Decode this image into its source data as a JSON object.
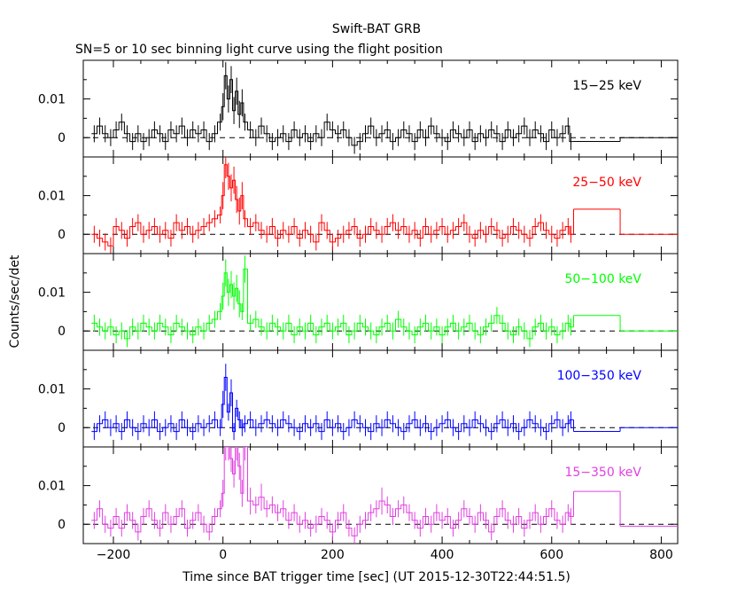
{
  "chart_data": {
    "type": "line",
    "title": "Swift-BAT GRB",
    "subtitle": "SN=5 or 10 sec binning light curve using the flight position",
    "xlabel": "Time since BAT trigger time [sec] (UT 2015-12-30T22:44:51.5)",
    "ylabel": "Counts/sec/det",
    "xlim": [
      -255,
      830
    ],
    "x_ticks": [
      -200,
      0,
      200,
      400,
      600,
      800
    ],
    "x_tick_labels": [
      "−200",
      "0",
      "200",
      "400",
      "600",
      "800"
    ],
    "baseline": 0,
    "panels": [
      {
        "name": "15−25 keV",
        "color": "#000000",
        "ylim": [
          -0.005,
          0.02
        ],
        "y_ticks": [
          0,
          0.01
        ],
        "y_tick_labels": [
          "0",
          "0.01"
        ],
        "x": [
          -235,
          -225,
          -215,
          -205,
          -195,
          -185,
          -175,
          -165,
          -155,
          -145,
          -135,
          -125,
          -115,
          -105,
          -95,
          -85,
          -75,
          -65,
          -55,
          -45,
          -35,
          -25,
          -15,
          -5,
          0,
          5,
          10,
          15,
          20,
          25,
          30,
          35,
          40,
          50,
          60,
          70,
          80,
          90,
          100,
          110,
          120,
          130,
          140,
          150,
          160,
          170,
          180,
          190,
          200,
          210,
          220,
          230,
          240,
          250,
          260,
          270,
          280,
          290,
          300,
          310,
          320,
          330,
          340,
          350,
          360,
          370,
          380,
          390,
          400,
          410,
          420,
          430,
          440,
          450,
          460,
          470,
          480,
          490,
          500,
          510,
          520,
          530,
          540,
          550,
          560,
          570,
          580,
          590,
          600,
          610,
          620,
          630,
          635
        ],
        "y": [
          0.001,
          0.003,
          0.001,
          0.0,
          0.002,
          0.004,
          0.001,
          -0.001,
          0.001,
          -0.001,
          0.0,
          0.002,
          0.001,
          -0.001,
          0.002,
          0.001,
          0.003,
          0.0,
          0.002,
          0.001,
          0.002,
          -0.001,
          0.001,
          0.004,
          0.008,
          0.016,
          0.01,
          0.015,
          0.007,
          0.012,
          0.006,
          0.009,
          0.004,
          0.002,
          0.0,
          0.003,
          0.001,
          -0.001,
          0.0,
          0.001,
          -0.001,
          0.002,
          0.0,
          0.001,
          -0.001,
          0.001,
          0.0,
          0.004,
          0.002,
          0.001,
          0.002,
          0.0,
          -0.002,
          -0.001,
          0.001,
          0.003,
          0.0,
          0.001,
          0.002,
          -0.001,
          0.0,
          0.002,
          0.001,
          -0.001,
          0.002,
          0.0,
          0.003,
          0.001,
          0.0,
          -0.001,
          0.002,
          0.001,
          0.0,
          0.002,
          -0.001,
          0.001,
          0.0,
          0.002,
          0.001,
          -0.001,
          0.002,
          0.0,
          0.001,
          0.003,
          0.0,
          0.002,
          0.001,
          -0.001,
          0.002,
          0.0,
          0.001,
          0.003,
          -0.001
        ],
        "long_bins": [
          {
            "start": 640,
            "end": 725,
            "value": -0.001
          },
          {
            "start": 725,
            "end": 830,
            "value": 0.0
          }
        ]
      },
      {
        "name": "25−50 keV",
        "color": "#ff0000",
        "ylim": [
          -0.005,
          0.02
        ],
        "y_ticks": [
          0,
          0.01
        ],
        "y_tick_labels": [
          "0",
          "0.01"
        ],
        "x": [
          -235,
          -225,
          -215,
          -205,
          -195,
          -185,
          -175,
          -165,
          -155,
          -145,
          -135,
          -125,
          -115,
          -105,
          -95,
          -85,
          -75,
          -65,
          -55,
          -45,
          -35,
          -25,
          -15,
          -5,
          0,
          5,
          10,
          15,
          20,
          25,
          30,
          35,
          40,
          50,
          60,
          70,
          80,
          90,
          100,
          110,
          120,
          130,
          140,
          150,
          160,
          170,
          180,
          190,
          200,
          210,
          220,
          230,
          240,
          250,
          260,
          270,
          280,
          290,
          300,
          310,
          320,
          330,
          340,
          350,
          360,
          370,
          380,
          390,
          400,
          410,
          420,
          430,
          440,
          450,
          460,
          470,
          480,
          490,
          500,
          510,
          520,
          530,
          540,
          550,
          560,
          570,
          580,
          590,
          600,
          610,
          620,
          630,
          635
        ],
        "y": [
          0.0,
          -0.001,
          -0.002,
          -0.003,
          0.002,
          0.001,
          -0.001,
          0.002,
          0.003,
          0.0,
          0.001,
          0.002,
          0.0,
          0.001,
          -0.001,
          0.003,
          0.001,
          0.002,
          0.0,
          0.001,
          0.002,
          0.003,
          0.004,
          0.005,
          0.01,
          0.018,
          0.015,
          0.012,
          0.014,
          0.009,
          0.006,
          0.01,
          0.004,
          0.002,
          0.003,
          0.001,
          0.0,
          0.002,
          -0.001,
          0.001,
          0.0,
          0.002,
          -0.001,
          0.001,
          0.0,
          -0.002,
          0.003,
          0.001,
          -0.002,
          -0.001,
          0.0,
          0.001,
          0.002,
          -0.001,
          0.0,
          0.002,
          0.001,
          0.0,
          0.002,
          0.003,
          0.001,
          0.002,
          0.0,
          0.001,
          -0.001,
          0.002,
          0.0,
          0.001,
          0.002,
          0.0,
          0.001,
          0.002,
          0.003,
          0.0,
          -0.001,
          0.001,
          0.0,
          0.002,
          0.001,
          -0.001,
          0.0,
          0.002,
          0.001,
          0.0,
          -0.001,
          0.002,
          0.003,
          0.001,
          0.0,
          -0.001,
          0.001,
          0.002,
          0.0
        ],
        "long_bins": [
          {
            "start": 640,
            "end": 725,
            "value": 0.0065
          },
          {
            "start": 725,
            "end": 830,
            "value": 0.0
          }
        ]
      },
      {
        "name": "50−100 keV",
        "color": "#00ff00",
        "ylim": [
          -0.005,
          0.02
        ],
        "y_ticks": [
          0,
          0.01
        ],
        "y_tick_labels": [
          "0",
          "0.01"
        ],
        "x": [
          -235,
          -225,
          -215,
          -205,
          -195,
          -185,
          -175,
          -165,
          -155,
          -145,
          -135,
          -125,
          -115,
          -105,
          -95,
          -85,
          -75,
          -65,
          -55,
          -45,
          -35,
          -25,
          -15,
          -5,
          0,
          5,
          10,
          15,
          20,
          25,
          30,
          35,
          40,
          50,
          60,
          70,
          80,
          90,
          100,
          110,
          120,
          130,
          140,
          150,
          160,
          170,
          180,
          190,
          200,
          210,
          220,
          230,
          240,
          250,
          260,
          270,
          280,
          290,
          300,
          310,
          320,
          330,
          340,
          350,
          360,
          370,
          380,
          390,
          400,
          410,
          420,
          430,
          440,
          450,
          460,
          470,
          480,
          490,
          500,
          510,
          520,
          530,
          540,
          550,
          560,
          570,
          580,
          590,
          600,
          610,
          620,
          630,
          635
        ],
        "y": [
          0.002,
          0.001,
          0.0,
          0.001,
          -0.001,
          0.0,
          -0.002,
          0.001,
          0.0,
          0.002,
          0.001,
          0.0,
          0.002,
          0.001,
          -0.001,
          0.002,
          0.001,
          0.0,
          -0.001,
          0.001,
          0.0,
          0.002,
          0.003,
          0.005,
          0.009,
          0.015,
          0.01,
          0.012,
          0.009,
          0.011,
          0.007,
          0.005,
          0.016,
          0.002,
          0.003,
          0.001,
          0.0,
          0.002,
          0.001,
          0.0,
          0.002,
          -0.001,
          0.001,
          0.0,
          0.002,
          -0.001,
          0.001,
          0.002,
          0.0,
          0.001,
          0.002,
          -0.001,
          0.0,
          0.002,
          0.001,
          0.0,
          -0.001,
          0.001,
          0.002,
          0.0,
          0.003,
          0.001,
          0.0,
          -0.001,
          0.001,
          0.002,
          0.0,
          0.001,
          -0.001,
          0.001,
          0.002,
          0.0,
          0.001,
          0.002,
          0.0,
          -0.001,
          0.001,
          0.002,
          0.004,
          0.002,
          0.0,
          -0.001,
          0.001,
          0.0,
          -0.002,
          0.001,
          0.002,
          0.0,
          0.001,
          -0.001,
          0.0,
          0.002,
          0.001
        ],
        "long_bins": [
          {
            "start": 640,
            "end": 725,
            "value": 0.004
          },
          {
            "start": 725,
            "end": 830,
            "value": 0.0
          }
        ]
      },
      {
        "name": "100−350 keV",
        "color": "#0000ff",
        "ylim": [
          -0.005,
          0.02
        ],
        "y_ticks": [
          0,
          0.01
        ],
        "y_tick_labels": [
          "0",
          "0.01"
        ],
        "x": [
          -235,
          -225,
          -215,
          -205,
          -195,
          -185,
          -175,
          -165,
          -155,
          -145,
          -135,
          -125,
          -115,
          -105,
          -95,
          -85,
          -75,
          -65,
          -55,
          -45,
          -35,
          -25,
          -15,
          -5,
          0,
          5,
          10,
          15,
          20,
          25,
          30,
          35,
          40,
          50,
          60,
          70,
          80,
          90,
          100,
          110,
          120,
          130,
          140,
          150,
          160,
          170,
          180,
          190,
          200,
          210,
          220,
          230,
          240,
          250,
          260,
          270,
          280,
          290,
          300,
          310,
          320,
          330,
          340,
          350,
          360,
          370,
          380,
          390,
          400,
          410,
          420,
          430,
          440,
          450,
          460,
          470,
          480,
          490,
          500,
          510,
          520,
          530,
          540,
          550,
          560,
          570,
          580,
          590,
          600,
          610,
          620,
          630,
          635
        ],
        "y": [
          -0.001,
          0.001,
          0.002,
          0.0,
          0.001,
          -0.001,
          0.002,
          0.0,
          -0.001,
          0.001,
          0.0,
          0.002,
          -0.001,
          0.0,
          0.001,
          -0.001,
          0.002,
          0.0,
          -0.001,
          0.001,
          0.0,
          0.001,
          0.002,
          0.0,
          0.006,
          0.013,
          0.004,
          0.009,
          -0.001,
          0.005,
          0.002,
          0.0,
          0.001,
          0.002,
          0.0,
          0.001,
          0.002,
          0.001,
          0.0,
          0.002,
          0.001,
          0.0,
          -0.001,
          0.001,
          0.0,
          0.001,
          -0.001,
          0.002,
          0.0,
          0.001,
          -0.001,
          0.0,
          0.002,
          0.001,
          0.0,
          -0.001,
          0.001,
          0.0,
          0.002,
          0.001,
          0.0,
          -0.001,
          0.001,
          0.002,
          0.0,
          0.001,
          -0.001,
          0.0,
          0.001,
          0.002,
          0.0,
          -0.001,
          0.001,
          0.0,
          0.002,
          0.001,
          0.0,
          -0.001,
          0.001,
          0.002,
          0.0,
          0.001,
          -0.001,
          0.0,
          0.002,
          0.001,
          0.0,
          -0.001,
          0.001,
          0.002,
          0.0,
          0.001,
          0.002
        ],
        "long_bins": [
          {
            "start": 640,
            "end": 725,
            "value": -0.001
          },
          {
            "start": 725,
            "end": 830,
            "value": 0.0
          }
        ]
      },
      {
        "name": "15−350 keV",
        "color": "#e040e0",
        "ylim": [
          -0.005,
          0.02
        ],
        "y_ticks": [
          0,
          0.01
        ],
        "y_tick_labels": [
          "0",
          "0.01"
        ],
        "x": [
          -235,
          -225,
          -215,
          -205,
          -195,
          -185,
          -175,
          -165,
          -155,
          -145,
          -135,
          -125,
          -115,
          -105,
          -95,
          -85,
          -75,
          -65,
          -55,
          -45,
          -35,
          -25,
          -15,
          -5,
          0,
          5,
          10,
          15,
          20,
          25,
          30,
          35,
          40,
          50,
          60,
          70,
          80,
          90,
          100,
          110,
          120,
          130,
          140,
          150,
          160,
          170,
          180,
          190,
          200,
          210,
          220,
          230,
          240,
          250,
          260,
          270,
          280,
          290,
          300,
          310,
          320,
          330,
          340,
          350,
          360,
          370,
          380,
          390,
          400,
          410,
          420,
          430,
          440,
          450,
          460,
          470,
          480,
          490,
          500,
          510,
          520,
          530,
          540,
          550,
          560,
          570,
          580,
          590,
          600,
          610,
          620,
          630,
          635
        ],
        "y": [
          0.001,
          0.004,
          0.0,
          -0.001,
          0.002,
          -0.001,
          0.003,
          0.001,
          -0.002,
          0.002,
          0.004,
          0.001,
          -0.001,
          0.003,
          0.0,
          0.002,
          0.004,
          -0.001,
          0.001,
          0.003,
          0.0,
          -0.002,
          0.002,
          0.004,
          0.008,
          0.02,
          0.02,
          0.017,
          0.013,
          0.02,
          0.015,
          0.008,
          0.02,
          0.006,
          0.005,
          0.007,
          0.004,
          0.005,
          0.003,
          0.004,
          0.001,
          0.003,
          0.0,
          0.001,
          -0.001,
          0.0,
          0.002,
          0.001,
          -0.002,
          0.001,
          0.003,
          -0.001,
          -0.003,
          0.0,
          0.001,
          0.003,
          0.004,
          0.006,
          0.005,
          0.002,
          0.004,
          0.005,
          0.003,
          0.001,
          -0.001,
          0.002,
          0.0,
          0.003,
          0.001,
          0.002,
          -0.001,
          0.001,
          0.004,
          0.002,
          0.0,
          0.003,
          0.001,
          -0.002,
          0.002,
          0.004,
          0.001,
          0.0,
          0.002,
          -0.001,
          0.001,
          0.003,
          0.0,
          0.002,
          0.004,
          0.001,
          0.0,
          0.003,
          0.002
        ],
        "long_bins": [
          {
            "start": 640,
            "end": 725,
            "value": 0.0085
          },
          {
            "start": 725,
            "end": 830,
            "value": -0.0005
          }
        ]
      }
    ]
  }
}
